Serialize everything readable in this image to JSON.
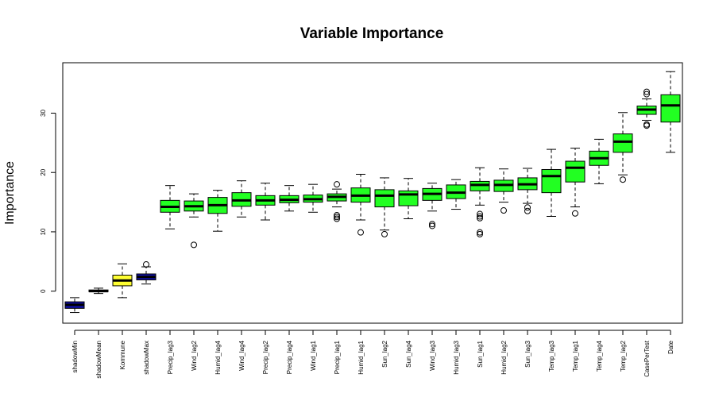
{
  "chart_data": {
    "type": "box",
    "title": "Variable Importance",
    "xlabel": "",
    "ylabel": "Importance",
    "ylim": [
      -5.4,
      38.5
    ],
    "yticks": [
      0,
      10,
      20,
      30
    ],
    "grid": false,
    "legend": "none",
    "colors": {
      "shadow": "#1111aa",
      "tentative": "#ffff33",
      "confirmed": "#22ff22",
      "median": "#000000",
      "axis": "#000000"
    },
    "variables": [
      {
        "name": "shadowMin",
        "status": "shadow",
        "whisker_low": -3.6,
        "q1": -2.9,
        "median": -2.3,
        "q3": -1.8,
        "whisker_high": -1.1,
        "outliers": []
      },
      {
        "name": "shadowMean",
        "status": "shadow",
        "whisker_low": -0.4,
        "q1": -0.1,
        "median": 0.0,
        "q3": 0.2,
        "whisker_high": 0.5,
        "outliers": []
      },
      {
        "name": "Kommune",
        "status": "tentative",
        "whisker_low": -1.1,
        "q1": 0.9,
        "median": 1.8,
        "q3": 2.7,
        "whisker_high": 4.6,
        "outliers": []
      },
      {
        "name": "shadowMax",
        "status": "shadow",
        "whisker_low": 1.2,
        "q1": 1.9,
        "median": 2.4,
        "q3": 2.9,
        "whisker_high": 4.1,
        "outliers": [
          4.5
        ]
      },
      {
        "name": "Precip_lag3",
        "status": "confirmed",
        "whisker_low": 10.5,
        "q1": 13.3,
        "median": 14.2,
        "q3": 15.3,
        "whisker_high": 17.8,
        "outliers": []
      },
      {
        "name": "Wind_lag2",
        "status": "confirmed",
        "whisker_low": 12.5,
        "q1": 13.5,
        "median": 14.3,
        "q3": 15.2,
        "whisker_high": 16.4,
        "outliers": [
          7.8
        ]
      },
      {
        "name": "Humid_lag4",
        "status": "confirmed",
        "whisker_low": 10.1,
        "q1": 13.1,
        "median": 14.5,
        "q3": 15.8,
        "whisker_high": 17.0,
        "outliers": []
      },
      {
        "name": "Wind_lag4",
        "status": "confirmed",
        "whisker_low": 12.5,
        "q1": 14.3,
        "median": 15.3,
        "q3": 16.6,
        "whisker_high": 18.6,
        "outliers": []
      },
      {
        "name": "Precip_lag2",
        "status": "confirmed",
        "whisker_low": 12.0,
        "q1": 14.5,
        "median": 15.3,
        "q3": 16.1,
        "whisker_high": 18.2,
        "outliers": []
      },
      {
        "name": "Precip_lag4",
        "status": "confirmed",
        "whisker_low": 13.5,
        "q1": 14.9,
        "median": 15.4,
        "q3": 16.1,
        "whisker_high": 17.8,
        "outliers": []
      },
      {
        "name": "Wind_lag1",
        "status": "confirmed",
        "whisker_low": 13.3,
        "q1": 15.0,
        "median": 15.5,
        "q3": 16.2,
        "whisker_high": 18.0,
        "outliers": []
      },
      {
        "name": "Precip_lag1",
        "status": "confirmed",
        "whisker_low": 14.2,
        "q1": 15.2,
        "median": 15.9,
        "q3": 16.4,
        "whisker_high": 17.2,
        "outliers": [
          18.0,
          12.8,
          12.5,
          12.2
        ]
      },
      {
        "name": "Humid_lag1",
        "status": "confirmed",
        "whisker_low": 12.0,
        "q1": 15.0,
        "median": 16.1,
        "q3": 17.4,
        "whisker_high": 19.7,
        "outliers": [
          9.9
        ]
      },
      {
        "name": "Sun_lag2",
        "status": "confirmed",
        "whisker_low": 10.3,
        "q1": 14.2,
        "median": 16.1,
        "q3": 17.1,
        "whisker_high": 19.1,
        "outliers": [
          9.6
        ]
      },
      {
        "name": "Sun_lag4",
        "status": "confirmed",
        "whisker_low": 12.2,
        "q1": 14.4,
        "median": 16.3,
        "q3": 16.9,
        "whisker_high": 19.0,
        "outliers": []
      },
      {
        "name": "Wind_lag3",
        "status": "confirmed",
        "whisker_low": 13.5,
        "q1": 15.3,
        "median": 16.4,
        "q3": 17.3,
        "whisker_high": 18.2,
        "outliers": [
          11.3,
          11.0
        ]
      },
      {
        "name": "Humid_lag3",
        "status": "confirmed",
        "whisker_low": 13.8,
        "q1": 15.6,
        "median": 16.6,
        "q3": 17.9,
        "whisker_high": 18.8,
        "outliers": []
      },
      {
        "name": "Sun_lag1",
        "status": "confirmed",
        "whisker_low": 14.5,
        "q1": 16.9,
        "median": 17.9,
        "q3": 18.5,
        "whisker_high": 20.8,
        "outliers": [
          13.0,
          12.6,
          12.3,
          9.9,
          9.6
        ]
      },
      {
        "name": "Humid_lag2",
        "status": "confirmed",
        "whisker_low": 15.0,
        "q1": 16.8,
        "median": 17.9,
        "q3": 18.7,
        "whisker_high": 20.6,
        "outliers": [
          13.6
        ]
      },
      {
        "name": "Sun_lag3",
        "status": "confirmed",
        "whisker_low": 14.8,
        "q1": 17.1,
        "median": 18.0,
        "q3": 19.1,
        "whisker_high": 20.7,
        "outliers": [
          14.1,
          13.5
        ]
      },
      {
        "name": "Temp_lag3",
        "status": "confirmed",
        "whisker_low": 12.6,
        "q1": 16.6,
        "median": 19.4,
        "q3": 20.5,
        "whisker_high": 23.9,
        "outliers": []
      },
      {
        "name": "Temp_lag1",
        "status": "confirmed",
        "whisker_low": 14.2,
        "q1": 18.4,
        "median": 20.8,
        "q3": 21.9,
        "whisker_high": 24.1,
        "outliers": [
          13.1
        ]
      },
      {
        "name": "Temp_lag4",
        "status": "confirmed",
        "whisker_low": 18.1,
        "q1": 21.2,
        "median": 22.4,
        "q3": 23.6,
        "whisker_high": 25.6,
        "outliers": []
      },
      {
        "name": "Temp_lag2",
        "status": "confirmed",
        "whisker_low": 19.6,
        "q1": 23.4,
        "median": 25.2,
        "q3": 26.5,
        "whisker_high": 30.1,
        "outliers": [
          18.8
        ]
      },
      {
        "name": "CasePerTest",
        "status": "confirmed",
        "whisker_low": 28.8,
        "q1": 29.8,
        "median": 30.6,
        "q3": 31.2,
        "whisker_high": 32.4,
        "outliers": [
          33.6,
          33.2,
          28.1,
          27.9
        ]
      },
      {
        "name": "Date",
        "status": "confirmed",
        "whisker_low": 23.4,
        "q1": 28.5,
        "median": 31.3,
        "q3": 33.1,
        "whisker_high": 37.0,
        "outliers": []
      }
    ]
  }
}
